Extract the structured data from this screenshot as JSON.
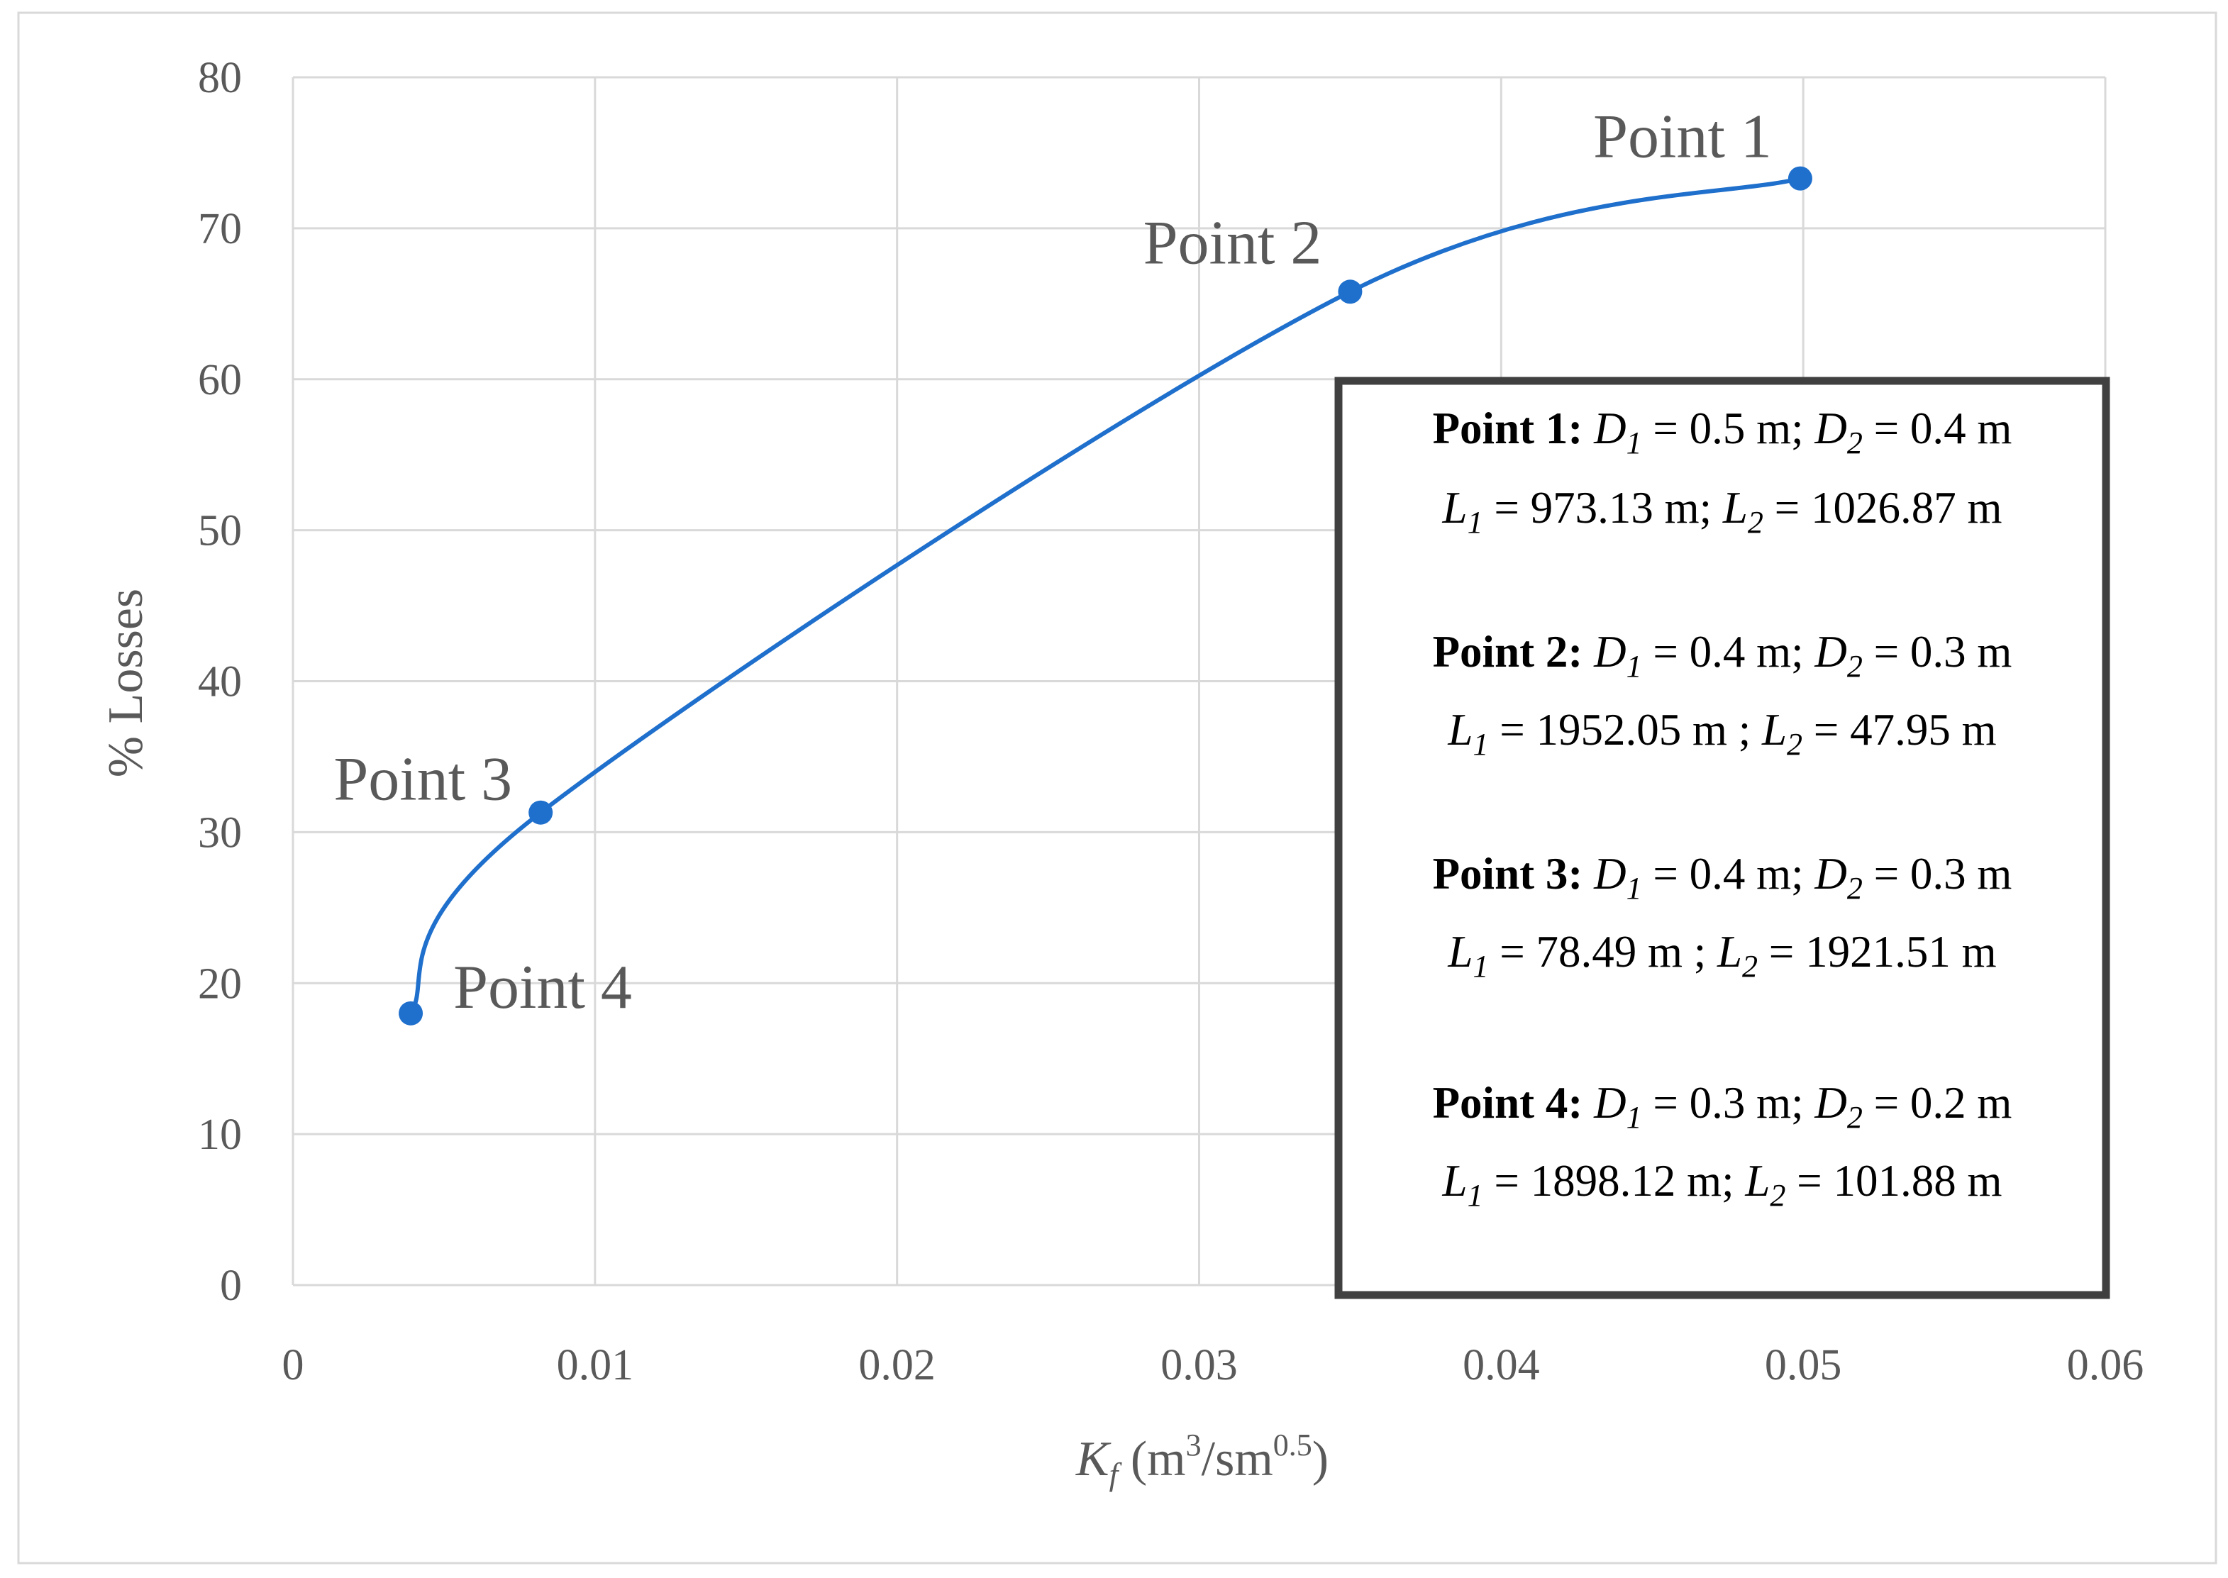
{
  "chart_data": {
    "type": "scatter",
    "xlabel": {
      "symbol": "K",
      "sub": "f",
      "unit_open": " (m",
      "unit_sup": "3",
      "unit_mid": "/sm",
      "unit_sup2": "0.5",
      "unit_close": ")"
    },
    "ylabel": "% Losses",
    "xlim": [
      0,
      0.06
    ],
    "ylim": [
      0,
      80
    ],
    "xticks": [
      0,
      0.01,
      0.02,
      0.03,
      0.04,
      0.05,
      0.06
    ],
    "yticks": [
      0,
      10,
      20,
      30,
      40,
      50,
      60,
      70,
      80
    ],
    "grid": true,
    "line_color": "#1f6fcc",
    "series": [
      {
        "smooth": true,
        "points": [
          {
            "x": 0.0039,
            "y": 18.0,
            "label": "Point 4"
          },
          {
            "x": 0.0082,
            "y": 31.3,
            "label": "Point 3"
          },
          {
            "x": 0.035,
            "y": 65.8,
            "label": "Point 2"
          },
          {
            "x": 0.0499,
            "y": 73.3,
            "label": "Point 1"
          }
        ]
      }
    ],
    "annotation_box": {
      "entries": [
        {
          "title": "Point 1:",
          "line1": [
            {
              "v": "D"
            },
            {
              "s": "1"
            },
            {
              "t": " = 0.5 m; "
            },
            {
              "v": "D"
            },
            {
              "s": "2"
            },
            {
              "t": " = 0.4 m"
            }
          ],
          "line2": [
            {
              "v": "L"
            },
            {
              "s": "1"
            },
            {
              "t": " = 973.13 m; "
            },
            {
              "v": "L"
            },
            {
              "s": "2"
            },
            {
              "t": " = 1026.87 m"
            }
          ]
        },
        {
          "title": "Point 2:",
          "line1": [
            {
              "v": "D"
            },
            {
              "s": "1"
            },
            {
              "t": " = 0.4 m; "
            },
            {
              "v": "D"
            },
            {
              "s": "2"
            },
            {
              "t": " = 0.3 m"
            }
          ],
          "line2": [
            {
              "v": "L"
            },
            {
              "s": "1"
            },
            {
              "t": " = 1952.05 m ; "
            },
            {
              "v": "L"
            },
            {
              "s": "2"
            },
            {
              "t": " = 47.95 m"
            }
          ]
        },
        {
          "title": "Point 3:",
          "line1": [
            {
              "v": "D"
            },
            {
              "s": "1"
            },
            {
              "t": " = 0.4 m; "
            },
            {
              "v": "D"
            },
            {
              "s": "2"
            },
            {
              "t": " = 0.3 m"
            }
          ],
          "line2": [
            {
              "v": "L"
            },
            {
              "s": "1"
            },
            {
              "t": " = 78.49 m ; "
            },
            {
              "v": "L"
            },
            {
              "s": "2"
            },
            {
              "t": " = 1921.51 m"
            }
          ]
        },
        {
          "title": "Point 4:",
          "line1": [
            {
              "v": "D"
            },
            {
              "s": "1"
            },
            {
              "t": " = 0.3 m; "
            },
            {
              "v": "D"
            },
            {
              "s": "2"
            },
            {
              "t": " = 0.2 m"
            }
          ],
          "line2": [
            {
              "v": "L"
            },
            {
              "s": "1"
            },
            {
              "t": " = 1898.12 m; "
            },
            {
              "v": "L"
            },
            {
              "s": "2"
            },
            {
              "t": " = 101.88 m"
            }
          ]
        }
      ]
    }
  }
}
